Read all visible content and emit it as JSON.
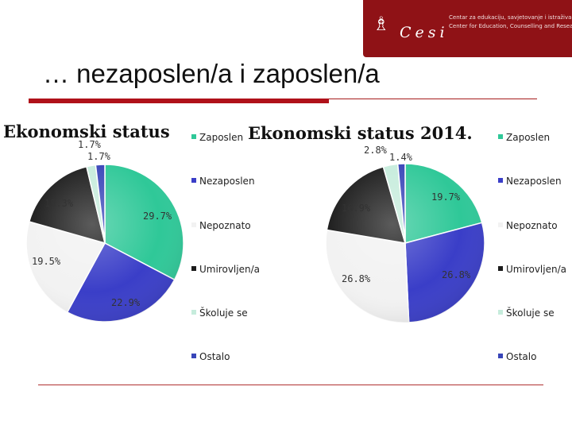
{
  "slide": {
    "title": "… nezaposlen/a i zaposlen/a"
  },
  "logo": {
    "name": "Cesi",
    "line1": "Centar za edukaciju, savjetovanje i istraživanje",
    "line2": "Center for Education, Counselling and Research"
  },
  "colors": {
    "brand": "#8f1216",
    "accent_bar": "#b0111a"
  },
  "chart_data": [
    {
      "type": "pie",
      "title": "Ekonomski status",
      "categories": [
        "Zaposlen",
        "Nezaposlen",
        "Nepoznato",
        "Umirovljen/a",
        "Školuje se",
        "Ostalo"
      ],
      "values": [
        29.7,
        22.9,
        19.5,
        15.3,
        1.7,
        1.7
      ],
      "labels": [
        "29.7%",
        "22.9%",
        "19.5%",
        "15.3%",
        "1.7%",
        "1.7%"
      ],
      "colors": [
        "#2fc898",
        "#3a3ec8",
        "#f2f2f2",
        "#1c1c1c",
        "#c6ecdc",
        "#3845b8"
      ],
      "legend_position": "right"
    },
    {
      "type": "pie",
      "title": "Ekonomski status 2014.",
      "categories": [
        "Zaposlen",
        "Nezaposlen",
        "Nepoznato",
        "Umirovljen/a",
        "Školuje se",
        "Ostalo"
      ],
      "values": [
        19.7,
        26.8,
        26.8,
        16.9,
        2.8,
        1.4
      ],
      "labels": [
        "19.7%",
        "26.8%",
        "26.8%",
        "16.9%",
        "2.8%",
        "1.4%"
      ],
      "colors": [
        "#2fc898",
        "#3a3ec8",
        "#f2f2f2",
        "#1c1c1c",
        "#c6ecdc",
        "#3845b8"
      ],
      "legend_position": "right"
    }
  ]
}
